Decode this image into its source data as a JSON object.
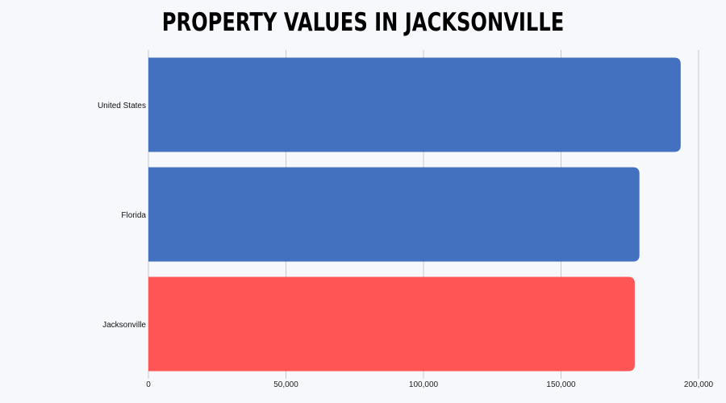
{
  "chart_data": {
    "type": "bar",
    "orientation": "horizontal",
    "title": "PROPERTY VALUES IN JACKSONVILLE",
    "categories": [
      "United States",
      "Florida",
      "Jacksonville"
    ],
    "values": [
      193500,
      178500,
      176800
    ],
    "bar_colors": [
      "#4470c0",
      "#4470c0",
      "#ff5555"
    ],
    "xlim": [
      0,
      200000
    ],
    "x_ticks": [
      0,
      50000,
      100000,
      150000,
      200000
    ],
    "x_tick_labels": [
      "0",
      "50,000",
      "100,000",
      "150,000",
      "200,000"
    ],
    "xlabel": "",
    "ylabel": "",
    "grid": true,
    "legend": "none"
  }
}
